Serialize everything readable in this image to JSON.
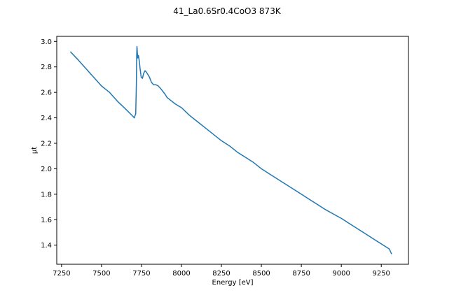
{
  "chart_data": {
    "type": "line",
    "title": "41_La0.6Sr0.4CoO3 873K",
    "xlabel": "Energy [eV]",
    "ylabel": "μt",
    "xlim": [
      7220,
      9420
    ],
    "ylim": [
      1.25,
      3.04
    ],
    "xticks": [
      7250,
      7500,
      7750,
      8000,
      8250,
      8500,
      8750,
      9000,
      9250
    ],
    "yticks": [
      1.4,
      1.6,
      1.8,
      2.0,
      2.2,
      2.4,
      2.6,
      2.8,
      3.0
    ],
    "xtick_labels": [
      "7250",
      "7500",
      "7750",
      "8000",
      "8250",
      "8500",
      "8750",
      "9000",
      "9250"
    ],
    "ytick_labels": [
      "1.4",
      "1.6",
      "1.8",
      "2.0",
      "2.2",
      "2.4",
      "2.6",
      "2.8",
      "3.0"
    ],
    "grid": false,
    "series": [
      {
        "color": "#1f77b4",
        "x": [
          7305,
          7350,
          7400,
          7450,
          7500,
          7550,
          7600,
          7650,
          7690,
          7705,
          7710,
          7714,
          7718,
          7720,
          7722,
          7726,
          7731,
          7736,
          7742,
          7748,
          7756,
          7764,
          7772,
          7780,
          7790,
          7800,
          7812,
          7825,
          7840,
          7855,
          7870,
          7882,
          7895,
          7910,
          7930,
          7960,
          8000,
          8050,
          8100,
          8150,
          8200,
          8250,
          8300,
          8350,
          8400,
          8450,
          8500,
          8550,
          8600,
          8650,
          8700,
          8750,
          8800,
          8850,
          8900,
          8950,
          9000,
          9050,
          9100,
          9150,
          9200,
          9250,
          9300,
          9315
        ],
        "y": [
          2.92,
          2.86,
          2.79,
          2.72,
          2.65,
          2.6,
          2.53,
          2.47,
          2.42,
          2.4,
          2.42,
          2.43,
          2.65,
          2.89,
          2.96,
          2.87,
          2.89,
          2.85,
          2.78,
          2.72,
          2.71,
          2.75,
          2.77,
          2.76,
          2.74,
          2.72,
          2.68,
          2.66,
          2.66,
          2.65,
          2.63,
          2.61,
          2.59,
          2.56,
          2.54,
          2.51,
          2.48,
          2.42,
          2.37,
          2.32,
          2.27,
          2.22,
          2.18,
          2.13,
          2.09,
          2.05,
          2.0,
          1.96,
          1.92,
          1.88,
          1.84,
          1.8,
          1.76,
          1.72,
          1.68,
          1.645,
          1.61,
          1.57,
          1.53,
          1.49,
          1.45,
          1.41,
          1.37,
          1.33
        ]
      }
    ]
  }
}
